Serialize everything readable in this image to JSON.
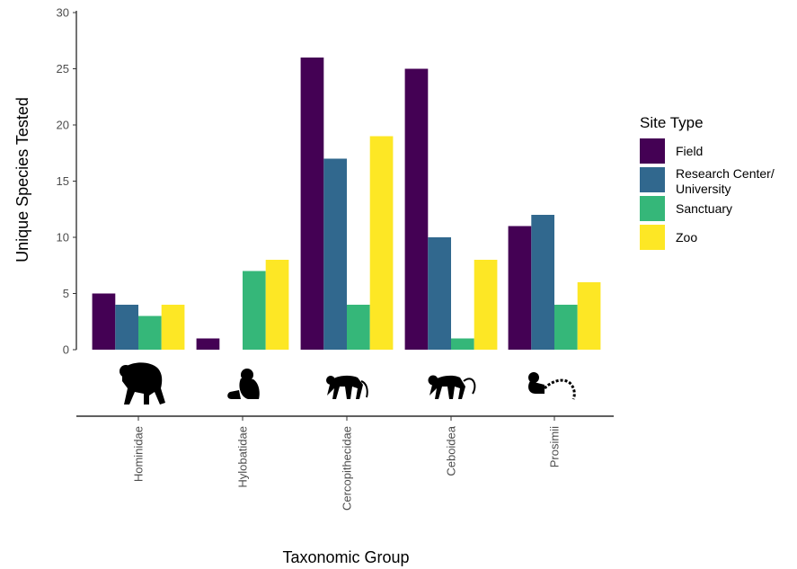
{
  "chart_data": {
    "type": "bar",
    "categories": [
      "Hominidae",
      "Hylobatidae",
      "Cercopithecidae",
      "Ceboidea",
      "Prosimii"
    ],
    "series": [
      {
        "name": "Field",
        "color": "#440154",
        "values": [
          5,
          1,
          26,
          25,
          11
        ]
      },
      {
        "name": "Research Center/ University",
        "color": "#31688e",
        "values": [
          4,
          0,
          17,
          10,
          12
        ]
      },
      {
        "name": "Sanctuary",
        "color": "#35b779",
        "values": [
          3,
          7,
          4,
          1,
          4
        ]
      },
      {
        "name": "Zoo",
        "color": "#fde725",
        "values": [
          4,
          8,
          19,
          8,
          6
        ]
      }
    ],
    "ylim": [
      0,
      30
    ],
    "yticks": [
      0,
      5,
      10,
      15,
      20,
      25,
      30
    ],
    "xlabel": "Taxonomic Group",
    "ylabel": "Unique Species Tested",
    "legend": {
      "title": "Site Type",
      "position": "right"
    },
    "category_icons": [
      "great-ape-silhouette-icon",
      "gibbon-silhouette-icon",
      "old-world-monkey-silhouette-icon",
      "new-world-monkey-silhouette-icon",
      "lemur-silhouette-icon"
    ],
    "grid": false
  }
}
